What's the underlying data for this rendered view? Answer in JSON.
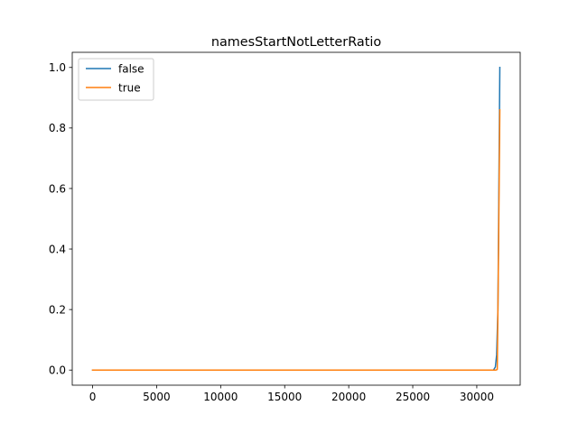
{
  "chart_data": {
    "type": "line",
    "title": "namesStartNotLetterRatio",
    "xlabel": "",
    "ylabel": "",
    "xlim": [
      -1590,
      33390
    ],
    "ylim": [
      -0.05,
      1.05
    ],
    "x_ticks": [
      0,
      5000,
      10000,
      15000,
      20000,
      25000,
      30000
    ],
    "x_tick_labels": [
      "0",
      "5000",
      "10000",
      "15000",
      "20000",
      "25000",
      "30000"
    ],
    "y_ticks": [
      0.0,
      0.2,
      0.4,
      0.6,
      0.8,
      1.0
    ],
    "y_tick_labels": [
      "0.0",
      "0.2",
      "0.4",
      "0.6",
      "0.8",
      "1.0"
    ],
    "grid": false,
    "legend_position": "top-left",
    "series": [
      {
        "name": "false",
        "color": "#1f77b4",
        "points": [
          [
            0,
            0.0
          ],
          [
            31300,
            0.0
          ],
          [
            31450,
            0.01
          ],
          [
            31550,
            0.05
          ],
          [
            31650,
            0.2
          ],
          [
            31800,
            1.0
          ]
        ]
      },
      {
        "name": "true",
        "color": "#ff7f0e",
        "points": [
          [
            0,
            0.0
          ],
          [
            31500,
            0.0
          ],
          [
            31600,
            0.002
          ],
          [
            31700,
            0.4
          ],
          [
            31800,
            0.86
          ]
        ]
      }
    ]
  }
}
